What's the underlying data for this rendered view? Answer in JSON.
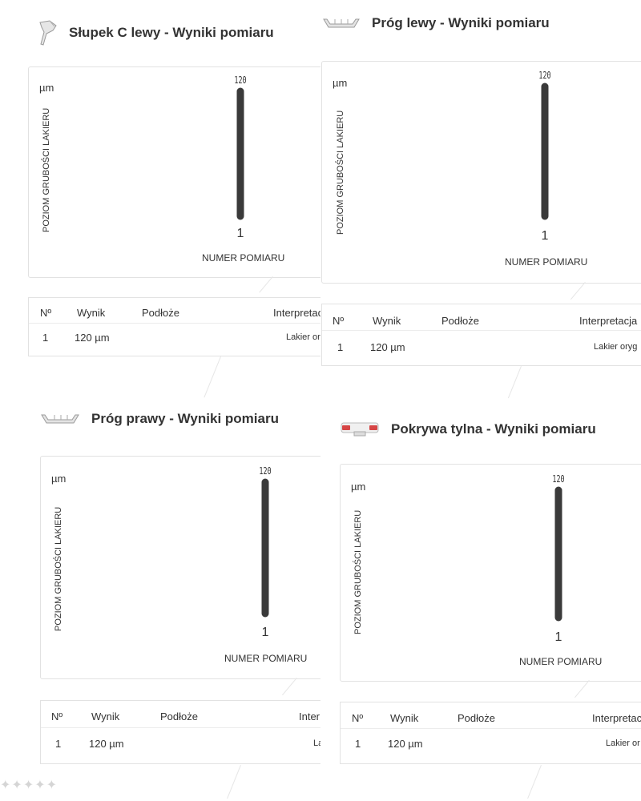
{
  "cards": [
    {
      "title": "Słupek C lewy - Wyniki pomiaru",
      "thumb_icon": "pillar-part-icon",
      "unit": "µm",
      "ylabel": "POZIOM GRUBOŚCI LAKIERU",
      "xlabel": "NUMER POMIARU",
      "chart_data": {
        "type": "bar",
        "categories": [
          "1"
        ],
        "values": [
          120
        ],
        "xlabel": "NUMER POMIARU",
        "ylabel": "POZIOM GRUBOŚCI LAKIERU",
        "unit": "µm"
      },
      "table": {
        "headers": [
          "Nº",
          "Wynik",
          "Podłoże",
          "Interpretac"
        ],
        "rows": [
          [
            "1",
            "120 µm",
            "",
            "Lakier or"
          ]
        ]
      }
    },
    {
      "title": "Próg lewy - Wyniki pomiaru",
      "thumb_icon": "sill-part-icon",
      "unit": "µm",
      "ylabel": "POZIOM GRUBOŚCI LAKIERU",
      "xlabel": "NUMER POMIARU",
      "chart_data": {
        "type": "bar",
        "categories": [
          "1"
        ],
        "values": [
          120
        ],
        "xlabel": "NUMER POMIARU",
        "ylabel": "POZIOM GRUBOŚCI LAKIERU",
        "unit": "µm"
      },
      "table": {
        "headers": [
          "Nº",
          "Wynik",
          "Podłoże",
          "Interpretacja"
        ],
        "rows": [
          [
            "1",
            "120 µm",
            "",
            "Lakier oryg"
          ]
        ]
      }
    },
    {
      "title": "Próg prawy - Wyniki pomiaru",
      "thumb_icon": "sill-part-icon",
      "unit": "µm",
      "ylabel": "POZIOM GRUBOŚCI LAKIERU",
      "xlabel": "NUMER POMIARU",
      "chart_data": {
        "type": "bar",
        "categories": [
          "1"
        ],
        "values": [
          120
        ],
        "xlabel": "NUMER POMIARU",
        "ylabel": "POZIOM GRUBOŚCI LAKIERU",
        "unit": "µm"
      },
      "table": {
        "headers": [
          "Nº",
          "Wynik",
          "Podłoże",
          "Inter"
        ],
        "rows": [
          [
            "1",
            "120 µm",
            "",
            "La"
          ]
        ]
      }
    },
    {
      "title": "Pokrywa tylna - Wyniki pomiaru",
      "thumb_icon": "trunk-lid-part-icon",
      "unit": "µm",
      "ylabel": "POZIOM GRUBOŚCI LAKIERU",
      "xlabel": "NUMER POMIARU",
      "chart_data": {
        "type": "bar",
        "categories": [
          "1"
        ],
        "values": [
          120
        ],
        "xlabel": "NUMER POMIARU",
        "ylabel": "POZIOM GRUBOŚCI LAKIERU",
        "unit": "µm"
      },
      "table": {
        "headers": [
          "Nº",
          "Wynik",
          "Podłoże",
          "Interpretac"
        ],
        "rows": [
          [
            "1",
            "120 µm",
            "",
            "Lakier or"
          ]
        ]
      }
    }
  ],
  "colors": {
    "bar": "#3a3a3a",
    "border": "#e2e2e2",
    "taillight": "#d64545"
  }
}
